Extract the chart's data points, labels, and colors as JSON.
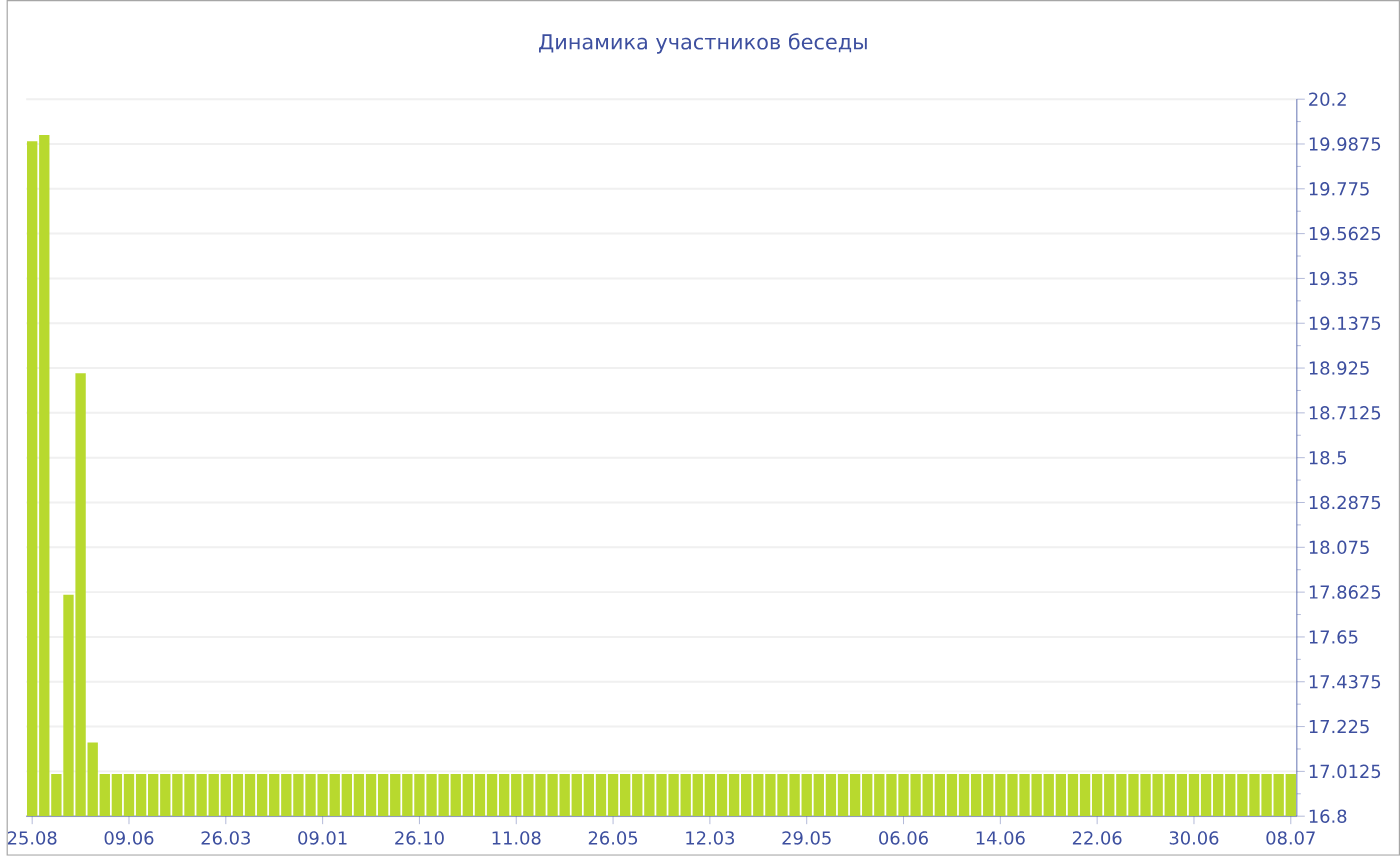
{
  "chart_data": {
    "type": "bar",
    "title": "Динамика участников беседы",
    "categories": [
      "25.08",
      null,
      null,
      null,
      null,
      null,
      null,
      null,
      "09.06",
      null,
      null,
      null,
      null,
      null,
      null,
      null,
      "26.03",
      null,
      null,
      null,
      null,
      null,
      null,
      null,
      "09.01",
      null,
      null,
      null,
      null,
      null,
      null,
      null,
      "26.10",
      null,
      null,
      null,
      null,
      null,
      null,
      null,
      "11.08",
      null,
      null,
      null,
      null,
      null,
      null,
      null,
      "26.05",
      null,
      null,
      null,
      null,
      null,
      null,
      null,
      "12.03",
      null,
      null,
      null,
      null,
      null,
      null,
      null,
      "29.05",
      null,
      null,
      null,
      null,
      null,
      null,
      null,
      "06.06",
      null,
      null,
      null,
      null,
      null,
      null,
      null,
      "14.06",
      null,
      null,
      null,
      null,
      null,
      null,
      null,
      "22.06",
      null,
      null,
      null,
      null,
      null,
      null,
      null,
      "30.06",
      null,
      null,
      null,
      null,
      null,
      null,
      null,
      "08.07"
    ],
    "values": [
      20,
      20.03,
      17,
      17.85,
      18.9,
      17.15,
      17,
      17,
      17,
      17,
      17,
      17,
      17,
      17,
      17,
      17,
      17,
      17,
      17,
      17,
      17,
      17,
      17,
      17,
      17,
      17,
      17,
      17,
      17,
      17,
      17,
      17,
      17,
      17,
      17,
      17,
      17,
      17,
      17,
      17,
      17,
      17,
      17,
      17,
      17,
      17,
      17,
      17,
      17,
      17,
      17,
      17,
      17,
      17,
      17,
      17,
      17,
      17,
      17,
      17,
      17,
      17,
      17,
      17,
      17,
      17,
      17,
      17,
      17,
      17,
      17,
      17,
      17,
      17,
      17,
      17,
      17,
      17,
      17,
      17,
      17,
      17,
      17,
      17,
      17,
      17,
      17,
      17,
      17,
      17,
      17,
      17,
      17,
      17,
      17,
      17,
      17,
      17,
      17,
      17,
      17,
      17,
      17,
      17,
      17
    ],
    "color": "#b8d92e",
    "ylim": [
      16.8,
      20.2
    ],
    "yticks": [
      16.8,
      17.0125,
      17.225,
      17.4375,
      17.65,
      17.8625,
      18.075,
      18.2875,
      18.5,
      18.7125,
      18.925,
      19.1375,
      19.35,
      19.5625,
      19.775,
      19.9875,
      20.2
    ],
    "grid": "y"
  }
}
